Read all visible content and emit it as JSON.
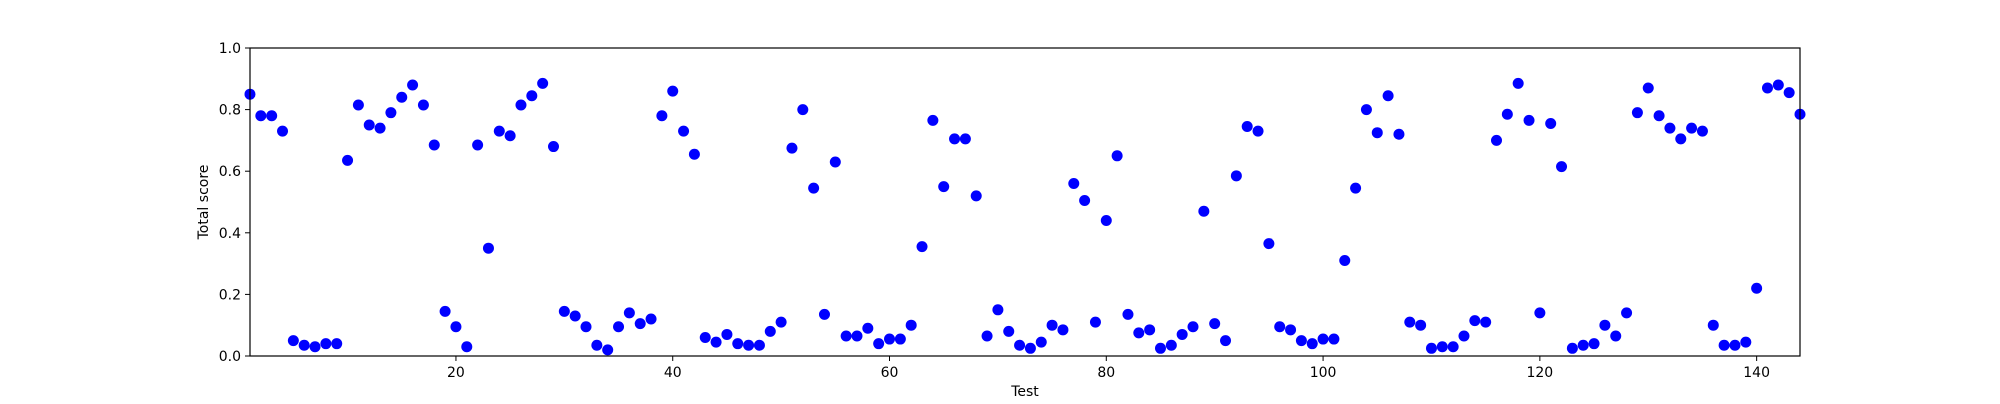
{
  "chart_data": {
    "type": "scatter",
    "title": "",
    "xlabel": "Test",
    "ylabel": "Total score",
    "xlim": [
      1,
      144
    ],
    "ylim": [
      0.0,
      1.0
    ],
    "grid": false,
    "xticks": [
      20,
      40,
      60,
      80,
      100,
      120,
      140
    ],
    "xtick_labels": [
      "20",
      "40",
      "60",
      "80",
      "100",
      "120",
      "140"
    ],
    "yticks": [
      0.0,
      0.2,
      0.4,
      0.6,
      0.8,
      1.0
    ],
    "ytick_labels": [
      "0.0",
      "0.2",
      "0.4",
      "0.6",
      "0.8",
      "1.0"
    ],
    "marker_color": "#0000ff",
    "series": [
      {
        "x": [
          1,
          2,
          3,
          4,
          5,
          6,
          7,
          8,
          9,
          10,
          11,
          12,
          13,
          14,
          15,
          16,
          17,
          18,
          19,
          20,
          21,
          22,
          23,
          24,
          25,
          26,
          27,
          28,
          29,
          30,
          31,
          32,
          33,
          34,
          35,
          36,
          37,
          38,
          39,
          40,
          41,
          42,
          43,
          44,
          45,
          46,
          47,
          48,
          49,
          50,
          51,
          52,
          53,
          54,
          55,
          56,
          57,
          58,
          59,
          60,
          61,
          62,
          63,
          64,
          65,
          66,
          67,
          68,
          69,
          70,
          71,
          72,
          73,
          74,
          75,
          76,
          77,
          78,
          79,
          80,
          81,
          82,
          83,
          84,
          85,
          86,
          87,
          88,
          89,
          90,
          91,
          92,
          93,
          94,
          95,
          96,
          97,
          98,
          99,
          100,
          101,
          102,
          103,
          104,
          105,
          106,
          107,
          108,
          109,
          110,
          111,
          112,
          113,
          114,
          115,
          116,
          117,
          118,
          119,
          120,
          121,
          122,
          123,
          124,
          125,
          126,
          127,
          128,
          129,
          130,
          131,
          132,
          133,
          134,
          135,
          136,
          137,
          138,
          139,
          140,
          141,
          142,
          143,
          144
        ],
        "y": [
          0.85,
          0.78,
          0.78,
          0.73,
          0.05,
          0.035,
          0.03,
          0.04,
          0.04,
          0.635,
          0.815,
          0.75,
          0.74,
          0.79,
          0.84,
          0.88,
          0.815,
          0.685,
          0.145,
          0.095,
          0.03,
          0.685,
          0.35,
          0.73,
          0.715,
          0.815,
          0.845,
          0.885,
          0.68,
          0.145,
          0.13,
          0.095,
          0.035,
          0.02,
          0.095,
          0.14,
          0.105,
          0.12,
          0.78,
          0.86,
          0.73,
          0.655,
          0.06,
          0.045,
          0.07,
          0.04,
          0.035,
          0.035,
          0.08,
          0.11,
          0.675,
          0.8,
          0.545,
          0.135,
          0.63,
          0.065,
          0.065,
          0.09,
          0.04,
          0.055,
          0.055,
          0.1,
          0.355,
          0.765,
          0.55,
          0.705,
          0.705,
          0.52,
          0.065,
          0.15,
          0.08,
          0.035,
          0.025,
          0.045,
          0.1,
          0.085,
          0.56,
          0.505,
          0.11,
          0.44,
          0.65,
          0.135,
          0.075,
          0.085,
          0.025,
          0.035,
          0.07,
          0.095,
          0.47,
          0.105,
          0.05,
          0.585,
          0.745,
          0.73,
          0.365,
          0.095,
          0.085,
          0.05,
          0.04,
          0.055,
          0.055,
          0.31,
          0.545,
          0.8,
          0.725,
          0.845,
          0.72,
          0.11,
          0.1,
          0.025,
          0.03,
          0.03,
          0.065,
          0.115,
          0.11,
          0.7,
          0.785,
          0.885,
          0.765,
          0.14,
          0.755,
          0.615,
          0.025,
          0.035,
          0.04,
          0.1,
          0.065,
          0.14,
          0.79,
          0.87,
          0.78,
          0.74,
          0.705,
          0.74,
          0.73,
          0.1,
          0.035,
          0.035,
          0.045,
          0.22,
          0.87,
          0.88,
          0.855,
          0.785
        ]
      }
    ]
  }
}
